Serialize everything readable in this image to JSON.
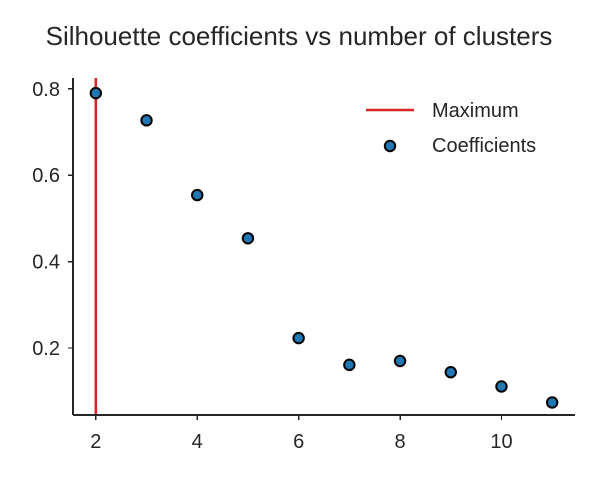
{
  "chart_data": {
    "type": "scatter",
    "title": "Silhouette coefficients vs number of clusters",
    "xlabel": "",
    "ylabel": "",
    "xlim": [
      1.55,
      11.45
    ],
    "ylim": [
      0.045,
      0.825
    ],
    "xticks": [
      2,
      4,
      6,
      8,
      10
    ],
    "xtick_labels": [
      "2",
      "4",
      "6",
      "8",
      "10"
    ],
    "yticks": [
      0.2,
      0.4,
      0.6,
      0.8
    ],
    "ytick_labels": [
      "0.2",
      "0.4",
      "0.6",
      "0.8"
    ],
    "grid": false,
    "legend_position": "top-right",
    "series": [
      {
        "name": "Coefficients",
        "kind": "scatter",
        "color": "#1f77b4",
        "edge_color": "#000000",
        "x": [
          2,
          3,
          4,
          5,
          6,
          7,
          8,
          9,
          10,
          11
        ],
        "y": [
          0.79,
          0.727,
          0.554,
          0.454,
          0.223,
          0.161,
          0.17,
          0.144,
          0.111,
          0.074
        ]
      },
      {
        "name": "Maximum",
        "kind": "vline",
        "color": "#d62728",
        "x": 2
      }
    ],
    "legend": [
      {
        "label": "Maximum",
        "kind": "line",
        "color": "#d62728"
      },
      {
        "label": "Coefficients",
        "kind": "marker",
        "color": "#1f77b4"
      }
    ]
  }
}
